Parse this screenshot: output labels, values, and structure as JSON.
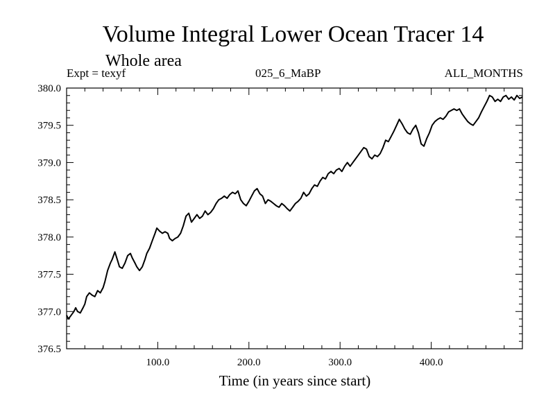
{
  "chart_data": {
    "type": "line",
    "title": "Volume Integral Lower Ocean Tracer 14",
    "subtitle": "Whole area",
    "annotations": {
      "experiment": "Expt = texyf",
      "period": "025_6_MaBP",
      "months": "ALL_MONTHS"
    },
    "xlabel": "Time (in years since start)",
    "ylabel": "",
    "xlim": [
      0,
      500
    ],
    "ylim": [
      376.5,
      380.0
    ],
    "x_ticks": [
      100,
      200,
      300,
      400
    ],
    "x_tick_labels": [
      "100.0",
      "200.0",
      "300.0",
      "400.0"
    ],
    "y_ticks": [
      376.5,
      377.0,
      377.5,
      378.0,
      378.5,
      379.0,
      379.5,
      380.0
    ],
    "y_tick_labels": [
      "376.5",
      "377.0",
      "377.5",
      "378.0",
      "378.5",
      "379.0",
      "379.5",
      "380.0"
    ],
    "grid": false,
    "legend": "none",
    "series": [
      {
        "color": "#000000",
        "points": [
          [
            0,
            376.95
          ],
          [
            2,
            376.9
          ],
          [
            5,
            376.95
          ],
          [
            8,
            377.0
          ],
          [
            10,
            377.05
          ],
          [
            12,
            377.0
          ],
          [
            15,
            376.98
          ],
          [
            18,
            377.05
          ],
          [
            20,
            377.1
          ],
          [
            22,
            377.2
          ],
          [
            25,
            377.25
          ],
          [
            28,
            377.22
          ],
          [
            31,
            377.2
          ],
          [
            34,
            377.28
          ],
          [
            37,
            377.25
          ],
          [
            40,
            377.32
          ],
          [
            42,
            377.4
          ],
          [
            45,
            377.55
          ],
          [
            48,
            377.65
          ],
          [
            50,
            377.7
          ],
          [
            53,
            377.8
          ],
          [
            56,
            377.68
          ],
          [
            58,
            377.6
          ],
          [
            61,
            377.58
          ],
          [
            64,
            377.65
          ],
          [
            67,
            377.75
          ],
          [
            70,
            377.78
          ],
          [
            72,
            377.72
          ],
          [
            75,
            377.65
          ],
          [
            77,
            377.6
          ],
          [
            80,
            377.55
          ],
          [
            83,
            377.6
          ],
          [
            86,
            377.7
          ],
          [
            88,
            377.78
          ],
          [
            91,
            377.85
          ],
          [
            94,
            377.95
          ],
          [
            97,
            378.05
          ],
          [
            99,
            378.12
          ],
          [
            102,
            378.08
          ],
          [
            105,
            378.05
          ],
          [
            108,
            378.07
          ],
          [
            111,
            378.05
          ],
          [
            113,
            377.98
          ],
          [
            116,
            377.95
          ],
          [
            119,
            377.98
          ],
          [
            122,
            378.0
          ],
          [
            125,
            378.05
          ],
          [
            128,
            378.15
          ],
          [
            131,
            378.28
          ],
          [
            134,
            378.32
          ],
          [
            137,
            378.2
          ],
          [
            140,
            378.25
          ],
          [
            143,
            378.3
          ],
          [
            146,
            378.25
          ],
          [
            149,
            378.28
          ],
          [
            152,
            378.35
          ],
          [
            155,
            378.3
          ],
          [
            158,
            378.33
          ],
          [
            161,
            378.38
          ],
          [
            164,
            378.45
          ],
          [
            167,
            378.5
          ],
          [
            170,
            378.52
          ],
          [
            173,
            378.55
          ],
          [
            176,
            378.52
          ],
          [
            179,
            378.57
          ],
          [
            182,
            378.6
          ],
          [
            185,
            378.58
          ],
          [
            188,
            378.62
          ],
          [
            191,
            378.5
          ],
          [
            194,
            378.45
          ],
          [
            197,
            378.42
          ],
          [
            200,
            378.48
          ],
          [
            203,
            378.55
          ],
          [
            206,
            378.62
          ],
          [
            209,
            378.65
          ],
          [
            212,
            378.58
          ],
          [
            215,
            378.55
          ],
          [
            218,
            378.45
          ],
          [
            221,
            378.5
          ],
          [
            224,
            378.48
          ],
          [
            227,
            378.45
          ],
          [
            230,
            378.42
          ],
          [
            233,
            378.4
          ],
          [
            236,
            378.45
          ],
          [
            239,
            378.42
          ],
          [
            242,
            378.38
          ],
          [
            245,
            378.35
          ],
          [
            248,
            378.4
          ],
          [
            251,
            378.45
          ],
          [
            254,
            378.48
          ],
          [
            257,
            378.52
          ],
          [
            260,
            378.6
          ],
          [
            263,
            378.55
          ],
          [
            266,
            378.58
          ],
          [
            269,
            378.65
          ],
          [
            272,
            378.7
          ],
          [
            275,
            378.68
          ],
          [
            278,
            378.75
          ],
          [
            281,
            378.8
          ],
          [
            284,
            378.78
          ],
          [
            287,
            378.85
          ],
          [
            290,
            378.88
          ],
          [
            293,
            378.85
          ],
          [
            296,
            378.9
          ],
          [
            299,
            378.92
          ],
          [
            302,
            378.88
          ],
          [
            305,
            378.95
          ],
          [
            308,
            379.0
          ],
          [
            311,
            378.95
          ],
          [
            314,
            379.0
          ],
          [
            317,
            379.05
          ],
          [
            320,
            379.1
          ],
          [
            323,
            379.15
          ],
          [
            326,
            379.2
          ],
          [
            329,
            379.18
          ],
          [
            332,
            379.08
          ],
          [
            335,
            379.05
          ],
          [
            338,
            379.1
          ],
          [
            341,
            379.08
          ],
          [
            344,
            379.12
          ],
          [
            347,
            379.2
          ],
          [
            350,
            379.3
          ],
          [
            353,
            379.28
          ],
          [
            356,
            379.35
          ],
          [
            359,
            379.42
          ],
          [
            362,
            379.5
          ],
          [
            365,
            379.58
          ],
          [
            368,
            379.52
          ],
          [
            371,
            379.45
          ],
          [
            374,
            379.4
          ],
          [
            377,
            379.38
          ],
          [
            380,
            379.45
          ],
          [
            383,
            379.5
          ],
          [
            386,
            379.4
          ],
          [
            389,
            379.25
          ],
          [
            392,
            379.22
          ],
          [
            395,
            379.32
          ],
          [
            398,
            379.4
          ],
          [
            401,
            379.5
          ],
          [
            404,
            379.55
          ],
          [
            407,
            379.58
          ],
          [
            410,
            379.6
          ],
          [
            413,
            379.58
          ],
          [
            416,
            379.62
          ],
          [
            419,
            379.68
          ],
          [
            422,
            379.7
          ],
          [
            425,
            379.72
          ],
          [
            428,
            379.7
          ],
          [
            431,
            379.72
          ],
          [
            434,
            379.65
          ],
          [
            437,
            379.6
          ],
          [
            440,
            379.55
          ],
          [
            443,
            379.52
          ],
          [
            446,
            379.5
          ],
          [
            449,
            379.55
          ],
          [
            452,
            379.6
          ],
          [
            455,
            379.68
          ],
          [
            458,
            379.75
          ],
          [
            461,
            379.82
          ],
          [
            464,
            379.9
          ],
          [
            467,
            379.88
          ],
          [
            470,
            379.82
          ],
          [
            473,
            379.85
          ],
          [
            476,
            379.82
          ],
          [
            479,
            379.88
          ],
          [
            482,
            379.9
          ],
          [
            485,
            379.85
          ],
          [
            488,
            379.88
          ],
          [
            491,
            379.84
          ],
          [
            494,
            379.9
          ],
          [
            497,
            379.86
          ],
          [
            500,
            379.88
          ]
        ]
      }
    ]
  }
}
